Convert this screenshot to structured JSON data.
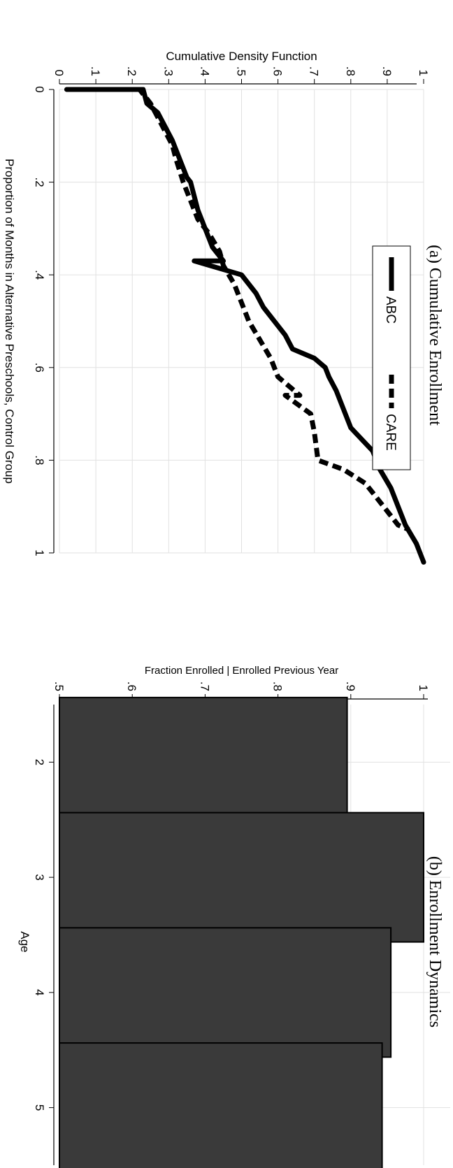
{
  "chart_data": [
    {
      "type": "line",
      "title": "(a) Cumulative Enrollment",
      "xlabel": "Proportion of Months in Alternative Preschools, Control Group",
      "ylabel": "Cumulative Density Function",
      "xlim": [
        0,
        1
      ],
      "ylim": [
        0,
        1
      ],
      "x_ticks": [
        0,
        0.2,
        0.4,
        0.6,
        0.8,
        1
      ],
      "x_tick_labels": [
        "0",
        ".2",
        ".4",
        ".6",
        ".8",
        "1"
      ],
      "y_ticks": [
        0,
        0.1,
        0.2,
        0.3,
        0.4,
        0.5,
        0.6,
        0.7,
        0.8,
        0.9,
        1
      ],
      "y_tick_labels": [
        "0",
        ".1",
        ".2",
        ".3",
        ".4",
        ".5",
        ".6",
        ".7",
        ".8",
        ".9",
        "1"
      ],
      "grid": true,
      "legend": "top",
      "series": [
        {
          "name": "ABC",
          "style": "solid",
          "points": [
            [
              0,
              0.02
            ],
            [
              0,
              0.23
            ],
            [
              0.03,
              0.24
            ],
            [
              0.05,
              0.27
            ],
            [
              0.08,
              0.29
            ],
            [
              0.11,
              0.31
            ],
            [
              0.15,
              0.33
            ],
            [
              0.19,
              0.35
            ],
            [
              0.2,
              0.36
            ],
            [
              0.23,
              0.37
            ],
            [
              0.26,
              0.38
            ],
            [
              0.3,
              0.4
            ],
            [
              0.34,
              0.42
            ],
            [
              0.37,
              0.45
            ],
            [
              0.37,
              0.37
            ],
            [
              0.4,
              0.5
            ],
            [
              0.44,
              0.54
            ],
            [
              0.47,
              0.56
            ],
            [
              0.5,
              0.59
            ],
            [
              0.53,
              0.62
            ],
            [
              0.56,
              0.64
            ],
            [
              0.58,
              0.7
            ],
            [
              0.6,
              0.73
            ],
            [
              0.62,
              0.74
            ],
            [
              0.65,
              0.76
            ],
            [
              0.69,
              0.78
            ],
            [
              0.73,
              0.8
            ],
            [
              0.78,
              0.86
            ],
            [
              0.82,
              0.88
            ],
            [
              0.86,
              0.91
            ],
            [
              0.9,
              0.93
            ],
            [
              0.94,
              0.95
            ],
            [
              0.98,
              0.98
            ],
            [
              1.02,
              1.0
            ]
          ]
        },
        {
          "name": "CARE",
          "style": "dashed",
          "points": [
            [
              0,
              0.02
            ],
            [
              0,
              0.22
            ],
            [
              0.03,
              0.25
            ],
            [
              0.06,
              0.27
            ],
            [
              0.09,
              0.29
            ],
            [
              0.12,
              0.31
            ],
            [
              0.15,
              0.32
            ],
            [
              0.2,
              0.34
            ],
            [
              0.24,
              0.36
            ],
            [
              0.28,
              0.38
            ],
            [
              0.31,
              0.41
            ],
            [
              0.35,
              0.44
            ],
            [
              0.38,
              0.45
            ],
            [
              0.42,
              0.48
            ],
            [
              0.46,
              0.5
            ],
            [
              0.5,
              0.52
            ],
            [
              0.54,
              0.55
            ],
            [
              0.58,
              0.58
            ],
            [
              0.62,
              0.6
            ],
            [
              0.66,
              0.66
            ],
            [
              0.66,
              0.62
            ],
            [
              0.7,
              0.69
            ],
            [
              0.74,
              0.7
            ],
            [
              0.8,
              0.71
            ],
            [
              0.82,
              0.78
            ],
            [
              0.85,
              0.84
            ],
            [
              0.88,
              0.87
            ],
            [
              0.91,
              0.9
            ],
            [
              0.94,
              0.93
            ],
            [
              0.95,
              0.96
            ]
          ]
        }
      ]
    },
    {
      "type": "bar",
      "title": "(b) Enrollment Dynamics",
      "xlabel": "Age",
      "ylabel": "Fraction Enrolled | Enrolled Previous Year",
      "categories": [
        "2",
        "3",
        "4",
        "5"
      ],
      "values": [
        0.895,
        1.0,
        0.955,
        0.943
      ],
      "ylim": [
        0.5,
        1
      ],
      "y_ticks": [
        0.5,
        0.6,
        0.7,
        0.8,
        0.9,
        1
      ],
      "y_tick_labels": [
        ".5",
        ".6",
        ".7",
        ".8",
        ".9",
        "1"
      ],
      "grid": true,
      "bar_color": "#3a3a3a"
    }
  ]
}
